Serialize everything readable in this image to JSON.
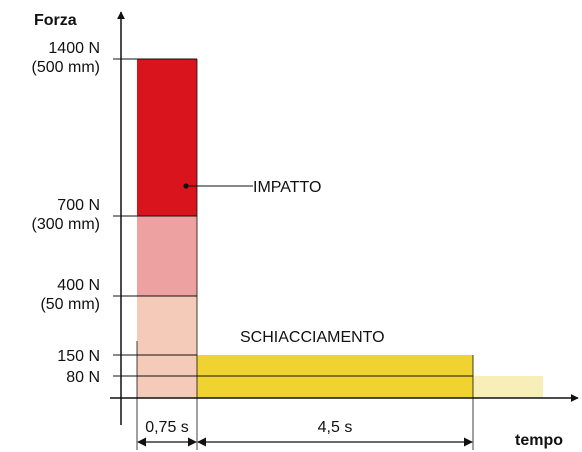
{
  "chart_data": {
    "type": "bar",
    "ylabel": "Forza",
    "xlabel": "tempo",
    "y_ticks": [
      {
        "value": 1400,
        "label": "1400 N",
        "sublabel": "(500 mm)"
      },
      {
        "value": 700,
        "label": "700 N",
        "sublabel": "(300 mm)"
      },
      {
        "value": 400,
        "label": "400 N",
        "sublabel": "(50 mm)"
      },
      {
        "value": 150,
        "label": "150 N",
        "sublabel": ""
      },
      {
        "value": 80,
        "label": "80 N",
        "sublabel": ""
      }
    ],
    "blocks": [
      {
        "phase": "impatto",
        "x_start": 0,
        "x_end": 0.75,
        "y_bottom": 700,
        "y_top": 1400,
        "color": "#d9141d"
      },
      {
        "phase": "impatto",
        "x_start": 0,
        "x_end": 0.75,
        "y_bottom": 400,
        "y_top": 700,
        "color": "#eda1a0"
      },
      {
        "phase": "impatto",
        "x_start": 0,
        "x_end": 0.75,
        "y_bottom": 0,
        "y_top": 400,
        "color": "#f4cbb8"
      },
      {
        "phase": "schiacciamento",
        "x_start": 0.75,
        "x_end": 5.25,
        "y_bottom": 0,
        "y_top": 150,
        "color": "#f0d230"
      },
      {
        "phase": "residuo",
        "x_start": 5.25,
        "x_end": 6.25,
        "y_bottom": 0,
        "y_top": 80,
        "color": "#f8efb8"
      }
    ],
    "annotations": {
      "impact_label": "IMPATTO",
      "crush_label": "SCHIACCIAMENTO"
    },
    "durations": [
      {
        "x_start": 0,
        "x_end": 0.75,
        "label": "0,75 s"
      },
      {
        "x_start": 0.75,
        "x_end": 5.25,
        "label": "4,5 s"
      }
    ],
    "ylim": [
      0,
      1400
    ],
    "xlim": [
      0,
      6.25
    ],
    "grid": false,
    "colors": {
      "axis": "#111111",
      "text": "#111111"
    }
  }
}
